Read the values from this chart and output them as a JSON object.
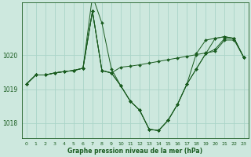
{
  "xlabel": "Graphe pression niveau de la mer (hPa)",
  "bg_color": "#cde8de",
  "grid_color": "#aad4c8",
  "line_color": "#1a5c20",
  "xlim": [
    -0.5,
    23.5
  ],
  "ylim": [
    1017.55,
    1021.55
  ],
  "yticks": [
    1018,
    1019,
    1020
  ],
  "xticks": [
    0,
    1,
    2,
    3,
    4,
    5,
    6,
    7,
    8,
    9,
    10,
    11,
    12,
    13,
    14,
    15,
    16,
    17,
    18,
    19,
    20,
    21,
    22,
    23
  ],
  "series": [
    [
      1019.15,
      1019.42,
      1019.42,
      1019.48,
      1019.52,
      1019.55,
      1019.62,
      1021.3,
      1019.55,
      1019.48,
      1019.65,
      1019.68,
      1019.72,
      1019.77,
      1019.82,
      1019.87,
      1019.92,
      1019.97,
      1020.02,
      1020.07,
      1020.12,
      1020.45,
      1020.45,
      1019.95
    ],
    [
      1019.15,
      1019.42,
      1019.42,
      1019.48,
      1019.52,
      1019.55,
      1019.62,
      1021.75,
      1020.95,
      1019.6,
      1019.1,
      1018.65,
      1018.38,
      1017.82,
      1017.78,
      1018.08,
      1018.55,
      1019.15,
      1019.6,
      1020.05,
      1020.5,
      1020.55,
      1020.5,
      1019.95
    ],
    [
      1019.15,
      1019.42,
      1019.42,
      1019.48,
      1019.52,
      1019.55,
      1019.62,
      1021.3,
      1019.55,
      1019.48,
      1019.1,
      1018.65,
      1018.38,
      1017.82,
      1017.78,
      1018.08,
      1018.55,
      1019.15,
      1020.05,
      1020.45,
      1020.5,
      1020.55,
      1020.5,
      1019.95
    ],
    [
      1019.15,
      1019.42,
      1019.42,
      1019.48,
      1019.52,
      1019.55,
      1019.62,
      1021.3,
      1019.55,
      1019.48,
      1019.1,
      1018.65,
      1018.38,
      1017.82,
      1017.78,
      1018.08,
      1018.55,
      1019.15,
      1019.6,
      1020.05,
      1020.18,
      1020.5,
      1020.5,
      1019.95
    ]
  ],
  "xlabel_fontsize": 5.5,
  "xtick_fontsize": 4.5,
  "ytick_fontsize": 5.5,
  "linewidth": 0.7,
  "markersize": 2.0
}
